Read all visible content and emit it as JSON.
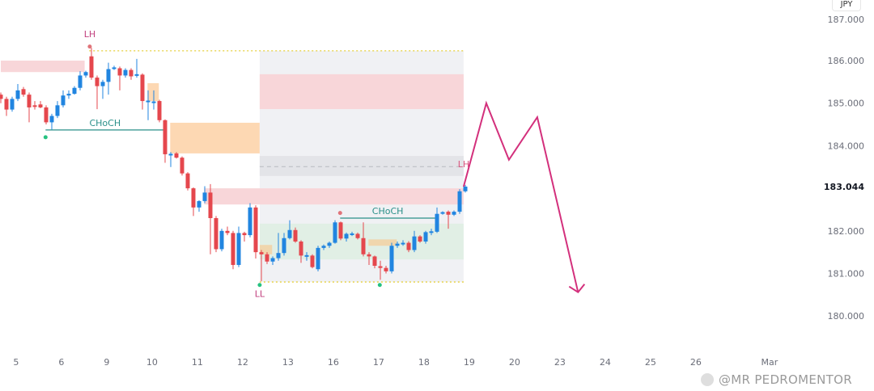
{
  "chart_data": {
    "type": "candlestick",
    "symbol_currency": "JPY",
    "current_price": "183.044",
    "y_ticks": [
      "187.000",
      "186.000",
      "185.000",
      "184.000",
      "182.000",
      "181.000",
      "180.000"
    ],
    "y_tick_values": [
      187,
      186,
      185,
      184,
      182,
      181,
      180
    ],
    "ylim": [
      179.7,
      187.1
    ],
    "x_ticks": [
      "5",
      "6",
      "9",
      "10",
      "11",
      "12",
      "13",
      "16",
      "17",
      "18",
      "19",
      "20",
      "23",
      "24",
      "25",
      "26",
      "Mar"
    ],
    "x_tick_candle_index": [
      2.7,
      10.7,
      18.7,
      26.7,
      34.7,
      42.7,
      50.7,
      58.7,
      66.7,
      74.7,
      82.7,
      90.7,
      98.7,
      106.7,
      114.7,
      122.7,
      135.7
    ],
    "candles_ohlc": [
      [
        185.2,
        185.25,
        185.0,
        185.1
      ],
      [
        185.1,
        185.15,
        184.7,
        184.85
      ],
      [
        184.85,
        185.15,
        184.8,
        185.1
      ],
      [
        185.1,
        185.45,
        185.05,
        185.3
      ],
      [
        185.33,
        185.38,
        185.15,
        185.2
      ],
      [
        185.2,
        185.25,
        184.55,
        184.9
      ],
      [
        184.95,
        185.05,
        184.85,
        184.93
      ],
      [
        184.97,
        185.05,
        184.88,
        184.9
      ],
      [
        184.9,
        184.95,
        184.5,
        184.55
      ],
      [
        184.55,
        184.75,
        184.38,
        184.7
      ],
      [
        184.7,
        185.05,
        184.65,
        184.95
      ],
      [
        184.95,
        185.3,
        184.9,
        185.18
      ],
      [
        185.18,
        185.3,
        185.1,
        185.22
      ],
      [
        185.22,
        185.4,
        185.2,
        185.36
      ],
      [
        185.36,
        185.75,
        185.3,
        185.65
      ],
      [
        185.65,
        185.76,
        185.6,
        185.73
      ],
      [
        186.1,
        186.3,
        185.55,
        185.6
      ],
      [
        185.6,
        185.65,
        184.86,
        185.4
      ],
      [
        185.4,
        185.55,
        185.1,
        185.5
      ],
      [
        185.5,
        185.95,
        185.2,
        185.8
      ],
      [
        185.82,
        185.88,
        185.78,
        185.84
      ],
      [
        185.82,
        185.86,
        185.3,
        185.65
      ],
      [
        185.65,
        185.82,
        185.6,
        185.78
      ],
      [
        185.78,
        185.82,
        185.55,
        185.63
      ],
      [
        185.66,
        186.04,
        185.6,
        185.68
      ],
      [
        185.67,
        185.7,
        184.85,
        185.05
      ],
      [
        185.04,
        185.3,
        184.6,
        185.06
      ],
      [
        185.02,
        185.3,
        184.85,
        185.04
      ],
      [
        185.05,
        185.08,
        184.55,
        184.6
      ],
      [
        184.6,
        184.62,
        183.6,
        183.8
      ],
      [
        183.79,
        183.85,
        183.5,
        183.81
      ],
      [
        183.82,
        183.85,
        183.7,
        183.72
      ],
      [
        183.72,
        183.75,
        183.3,
        183.35
      ],
      [
        183.35,
        183.38,
        182.95,
        183.0
      ],
      [
        183.0,
        183.02,
        182.35,
        182.55
      ],
      [
        182.55,
        182.72,
        182.45,
        182.7
      ],
      [
        182.7,
        183.05,
        182.65,
        182.9
      ],
      [
        182.9,
        183.1,
        181.45,
        182.3
      ],
      [
        182.3,
        182.35,
        181.5,
        181.57
      ],
      [
        181.57,
        182.05,
        181.52,
        182.0
      ],
      [
        182.0,
        182.1,
        181.9,
        181.95
      ],
      [
        181.95,
        182.0,
        181.1,
        181.2
      ],
      [
        181.2,
        182.1,
        181.15,
        181.95
      ],
      [
        181.95,
        181.98,
        181.75,
        181.9
      ],
      [
        181.9,
        182.65,
        181.85,
        182.55
      ],
      [
        182.55,
        182.6,
        181.35,
        181.5
      ],
      [
        181.5,
        181.55,
        180.82,
        181.45
      ],
      [
        181.45,
        181.5,
        181.22,
        181.28
      ],
      [
        181.28,
        181.4,
        181.2,
        181.36
      ],
      [
        181.36,
        181.95,
        181.3,
        181.48
      ],
      [
        181.48,
        181.95,
        181.42,
        181.83
      ],
      [
        181.83,
        182.25,
        181.8,
        182.02
      ],
      [
        182.02,
        182.08,
        181.72,
        181.75
      ],
      [
        181.75,
        181.78,
        181.25,
        181.42
      ],
      [
        181.41,
        181.5,
        181.3,
        181.43
      ],
      [
        181.42,
        181.45,
        181.12,
        181.15
      ],
      [
        181.1,
        181.65,
        181.05,
        181.6
      ],
      [
        181.6,
        181.68,
        181.55,
        181.65
      ],
      [
        181.65,
        181.75,
        181.6,
        181.72
      ],
      [
        181.72,
        182.25,
        181.7,
        182.2
      ],
      [
        182.2,
        182.22,
        181.78,
        181.82
      ],
      [
        181.82,
        181.96,
        181.75,
        181.93
      ],
      [
        181.92,
        181.98,
        181.88,
        181.94
      ],
      [
        181.93,
        181.96,
        181.8,
        181.83
      ],
      [
        181.83,
        182.2,
        181.4,
        181.45
      ],
      [
        181.45,
        181.5,
        181.2,
        181.4
      ],
      [
        181.4,
        181.42,
        181.12,
        181.18
      ],
      [
        181.17,
        181.3,
        180.85,
        181.13
      ],
      [
        181.13,
        181.18,
        181.0,
        181.05
      ],
      [
        181.05,
        181.72,
        181.0,
        181.65
      ],
      [
        181.65,
        181.75,
        181.6,
        181.7
      ],
      [
        181.71,
        181.78,
        181.65,
        181.72
      ],
      [
        181.72,
        181.76,
        181.5,
        181.55
      ],
      [
        181.55,
        182.0,
        181.5,
        181.87
      ],
      [
        181.87,
        181.9,
        181.72,
        181.75
      ],
      [
        181.75,
        182.0,
        181.7,
        181.97
      ],
      [
        181.97,
        182.05,
        181.9,
        181.99
      ],
      [
        181.98,
        182.55,
        181.95,
        182.4
      ],
      [
        182.41,
        182.46,
        182.38,
        182.44
      ],
      [
        182.45,
        182.48,
        182.05,
        182.38
      ],
      [
        182.38,
        182.48,
        182.35,
        182.45
      ],
      [
        182.45,
        182.98,
        182.4,
        182.93
      ],
      [
        182.93,
        183.08,
        182.9,
        183.04
      ]
    ],
    "zones": [
      {
        "name": "supply-zone-left",
        "kind": "supply",
        "from": 0,
        "to": 14.8,
        "top": 186.0,
        "bottom": 185.73
      },
      {
        "name": "orderblock-small",
        "kind": "orderblock",
        "from": 25.9,
        "to": 27.9,
        "top": 185.47,
        "bottom": 185.05
      },
      {
        "name": "orderblock-large",
        "kind": "orderblock",
        "from": 29.9,
        "to": 45.7,
        "top": 184.54,
        "bottom": 183.82
      },
      {
        "name": "range-box",
        "kind": "range",
        "from": 45.7,
        "to": 81.7,
        "top": 186.23,
        "bottom": 180.8
      },
      {
        "name": "premium-zone",
        "kind": "supply",
        "from": 45.7,
        "to": 81.7,
        "top": 185.68,
        "bottom": 184.86
      },
      {
        "name": "equilibrium-band",
        "kind": "equilibrium",
        "from": 45.7,
        "to": 81.7,
        "top": 183.76,
        "bottom": 183.29
      },
      {
        "name": "supply-zone-mid",
        "kind": "supply",
        "from": 35.9,
        "to": 81.7,
        "top": 183.0,
        "bottom": 182.62
      },
      {
        "name": "discount-zone",
        "kind": "demand",
        "from": 45.7,
        "to": 81.7,
        "top": 182.17,
        "bottom": 181.33
      },
      {
        "name": "orderblock-low-1",
        "kind": "orderblock2",
        "from": 45.7,
        "to": 47.9,
        "top": 181.67,
        "bottom": 181.45
      },
      {
        "name": "orderblock-low-2",
        "kind": "orderblock2",
        "from": 64.9,
        "to": 69.9,
        "top": 181.8,
        "bottom": 181.65
      }
    ],
    "equilibrium_line": {
      "from": 45.7,
      "to": 81.7,
      "price": 183.51
    },
    "dotted_levels": [
      {
        "name": "range-high-line",
        "from": 15.6,
        "to": 81.7,
        "price": 186.23
      },
      {
        "name": "range-low-line",
        "from": 45.7,
        "to": 81.7,
        "price": 180.8
      }
    ],
    "choch": [
      {
        "label": "CHoCH",
        "from": 7.9,
        "to": 28.9,
        "price": 184.37
      },
      {
        "label": "CHoCH",
        "from": 59.9,
        "to": 76.7,
        "price": 182.3
      }
    ],
    "labels": [
      {
        "text": "LH",
        "at": 15.7,
        "price": 186.55,
        "color": "#c2417f"
      },
      {
        "text": "LL",
        "at": 45.7,
        "price": 180.45,
        "color": "#c2417f"
      },
      {
        "text": "LH",
        "at": 81.7,
        "price": 183.5,
        "color": "#d9577f"
      }
    ],
    "markers": [
      {
        "at": 15.7,
        "price": 186.33,
        "color": "#e0747a"
      },
      {
        "at": 7.9,
        "price": 184.2,
        "color": "#26c281"
      },
      {
        "at": 45.7,
        "price": 180.73,
        "color": "#26c281"
      },
      {
        "at": 59.9,
        "price": 182.42,
        "color": "#e0747a"
      },
      {
        "at": 66.9,
        "price": 180.73,
        "color": "#26c281"
      }
    ],
    "projection_path": [
      [
        81.7,
        183.04
      ],
      [
        85.7,
        185.0
      ],
      [
        89.7,
        183.67
      ],
      [
        94.7,
        184.67
      ],
      [
        101.9,
        180.56
      ]
    ],
    "colors": {
      "up": "#2185e0",
      "down": "#e5474d",
      "projection": "#d3307c",
      "choch": "#2a8f89",
      "supply": "#f8d6d9",
      "orderblock": "#fdd8b3",
      "orderblock2": "#f0d6ad",
      "demand": "#e1efe5",
      "range": "#f0f1f4",
      "equilibrium": "#e3e4e8"
    }
  },
  "watermark": "@MR PEDROMENTOR"
}
